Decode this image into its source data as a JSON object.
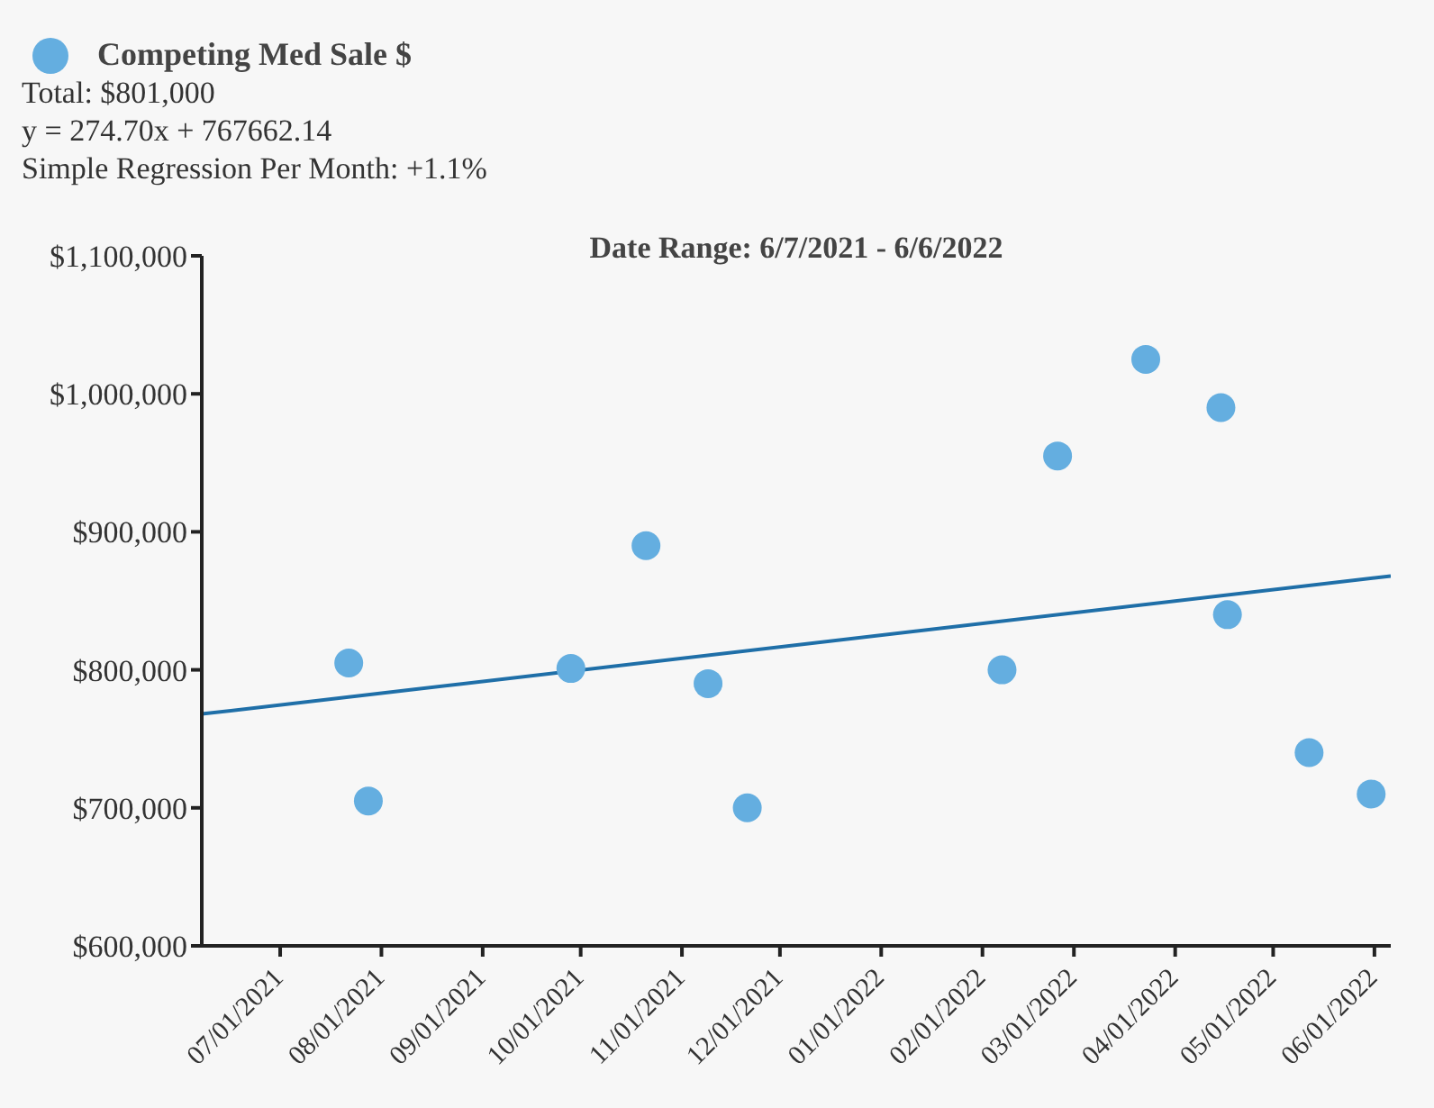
{
  "chart_data": {
    "type": "scatter",
    "title": "Date Range: 6/7/2021 - 6/6/2022",
    "annotations": [
      "Total: $801,000",
      "y = 274.70x + 767662.14",
      "Simple Regression Per Month: +1.1%"
    ],
    "legend": "top left",
    "grid": false,
    "marker": "circle",
    "xlim": [
      "2021-06-07",
      "2022-06-06"
    ],
    "xticks": [
      {
        "value": "2021-07-01",
        "label": "07/01/2021"
      },
      {
        "value": "2021-08-01",
        "label": "08/01/2021"
      },
      {
        "value": "2021-09-01",
        "label": "09/01/2021"
      },
      {
        "value": "2021-10-01",
        "label": "10/01/2021"
      },
      {
        "value": "2021-11-01",
        "label": "11/01/2021"
      },
      {
        "value": "2021-12-01",
        "label": "12/01/2021"
      },
      {
        "value": "2022-01-01",
        "label": "01/01/2022"
      },
      {
        "value": "2022-02-01",
        "label": "02/01/2022"
      },
      {
        "value": "2022-03-01",
        "label": "03/01/2022"
      },
      {
        "value": "2022-04-01",
        "label": "04/01/2022"
      },
      {
        "value": "2022-05-01",
        "label": "05/01/2022"
      },
      {
        "value": "2022-06-01",
        "label": "06/01/2022"
      }
    ],
    "ylim": [
      600000,
      1100000
    ],
    "yticks": [
      {
        "value": 600000,
        "label": "$600,000"
      },
      {
        "value": 700000,
        "label": "$700,000"
      },
      {
        "value": 800000,
        "label": "$800,000"
      },
      {
        "value": 900000,
        "label": "$900,000"
      },
      {
        "value": 1000000,
        "label": "$1,000,000"
      },
      {
        "value": 1100000,
        "label": "$1,100,000"
      }
    ],
    "series": [
      {
        "name": "Competing Med Sale $",
        "color": "#64aee0",
        "x": [
          "2021-07-22",
          "2021-07-28",
          "2021-09-28",
          "2021-10-21",
          "2021-11-09",
          "2021-11-21",
          "2022-02-07",
          "2022-02-24",
          "2022-03-23",
          "2022-04-15",
          "2022-04-17",
          "2022-05-12",
          "2022-05-31"
        ],
        "values": [
          805000,
          705000,
          801000,
          890000,
          790000,
          700000,
          800000,
          955000,
          1025000,
          990000,
          840000,
          740000,
          710000
        ]
      },
      {
        "type": "line",
        "color": "#1f6fa8",
        "line_style": "solid",
        "marker": "none",
        "x": [
          "2021-06-07",
          "2022-06-06"
        ],
        "values": [
          768000,
          868000
        ]
      }
    ]
  }
}
